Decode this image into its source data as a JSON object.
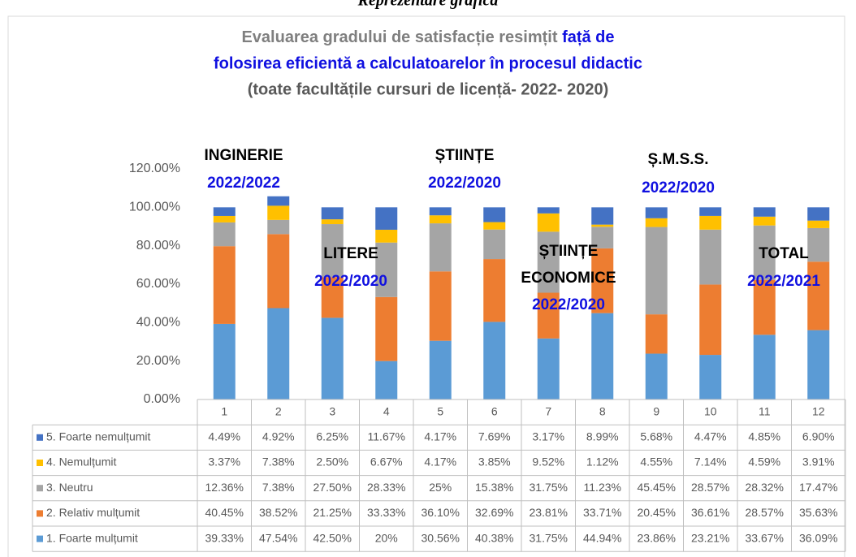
{
  "page_heading": "Reprezentare grafică",
  "chart_data": {
    "type": "stacked_bar",
    "title": [
      {
        "text": "Evaluarea gradului de satisfacție resimțit",
        "color": "#7f7f7f"
      },
      {
        "text": "față de",
        "color": "#1010e0"
      },
      {
        "text": "folosirea eficientă a calculatoarelor  în procesul didactic",
        "color": "#1010e0"
      }
    ],
    "subtitle": "(toate facultățile cursuri de licență- 2022- 2020)",
    "categories": [
      "1",
      "2",
      "3",
      "4",
      "5",
      "6",
      "7",
      "8",
      "9",
      "10",
      "11",
      "12"
    ],
    "ylim": [
      0,
      120
    ],
    "yticks": [
      {
        "value": 0,
        "label": "0.00%"
      },
      {
        "value": 20,
        "label": "20.00%"
      },
      {
        "value": 40,
        "label": "40.00%"
      },
      {
        "value": 60,
        "label": "60.00%"
      },
      {
        "value": 80,
        "label": "80.00%"
      },
      {
        "value": 100,
        "label": "100.00%"
      },
      {
        "value": 120,
        "label": "120.00%"
      }
    ],
    "series": [
      {
        "name": "1. Foarte mulțumit",
        "color": "#5b9bd5",
        "values": [
          39.33,
          47.54,
          42.5,
          20,
          30.56,
          40.38,
          31.75,
          44.94,
          23.86,
          23.21,
          33.67,
          36.09
        ],
        "value_labels": [
          "39.33%",
          "47.54%",
          "42.50%",
          "20%",
          "30.56%",
          "40.38%",
          "31.75%",
          "44.94%",
          "23.86%",
          "23.21%",
          "33.67%",
          "36.09%"
        ]
      },
      {
        "name": "2. Relativ mulțumit",
        "color": "#ed7d31",
        "values": [
          40.45,
          38.52,
          21.25,
          33.33,
          36.1,
          32.69,
          23.81,
          33.71,
          20.45,
          36.61,
          28.57,
          35.63
        ],
        "value_labels": [
          "40.45%",
          "38.52%",
          "21.25%",
          "33.33%",
          "36.10%",
          "32.69%",
          "23.81%",
          "33.71%",
          "20.45%",
          "36.61%",
          "28.57%",
          "35.63%"
        ]
      },
      {
        "name": "3. Neutru",
        "color": "#a5a5a5",
        "values": [
          12.36,
          7.38,
          27.5,
          28.33,
          25,
          15.38,
          31.75,
          11.23,
          45.45,
          28.57,
          28.32,
          17.47
        ],
        "value_labels": [
          "12.36%",
          "7.38%",
          "27.50%",
          "28.33%",
          "25%",
          "15.38%",
          "31.75%",
          "11.23%",
          "45.45%",
          "28.57%",
          "28.32%",
          "17.47%"
        ]
      },
      {
        "name": "4. Nemulțumit",
        "color": "#ffc000",
        "values": [
          3.37,
          7.38,
          2.5,
          6.67,
          4.17,
          3.85,
          9.52,
          1.12,
          4.55,
          7.14,
          4.59,
          3.91
        ],
        "value_labels": [
          "3.37%",
          "7.38%",
          "2.50%",
          "6.67%",
          "4.17%",
          "3.85%",
          "9.52%",
          "1.12%",
          "4.55%",
          "7.14%",
          "4.59%",
          "3.91%"
        ]
      },
      {
        "name": "5. Foarte nemulțumit",
        "color": "#4472c4",
        "values": [
          4.49,
          4.92,
          6.25,
          11.67,
          4.17,
          7.69,
          3.17,
          8.99,
          5.68,
          4.47,
          4.85,
          6.9
        ],
        "value_labels": [
          "4.49%",
          "4.92%",
          "6.25%",
          "11.67%",
          "4.17%",
          "7.69%",
          "3.17%",
          "8.99%",
          "5.68%",
          "4.47%",
          "4.85%",
          "6.90%"
        ]
      }
    ],
    "annotations": [
      {
        "text": "INGINERIE",
        "color": "#000000"
      },
      {
        "text": "2022/2022",
        "color": "#1010e0"
      },
      {
        "text": "ȘTIINȚE",
        "color": "#000000"
      },
      {
        "text": "2022/2020",
        "color": "#1010e0"
      },
      {
        "text": "Ș.M.S.S.",
        "color": "#000000"
      },
      {
        "text": "2022/2020",
        "color": "#1010e0"
      },
      {
        "text": "LITERE",
        "color": "#000000"
      },
      {
        "text": "2022/2020",
        "color": "#1010e0"
      },
      {
        "text": "ȘTIINȚE",
        "color": "#000000"
      },
      {
        "text": "ECONOMICE",
        "color": "#000000"
      },
      {
        "text": "2022/2020",
        "color": "#1010e0"
      },
      {
        "text": "TOTAL",
        "color": "#000000"
      },
      {
        "text": "2022/2021",
        "color": "#1010e0"
      }
    ]
  }
}
